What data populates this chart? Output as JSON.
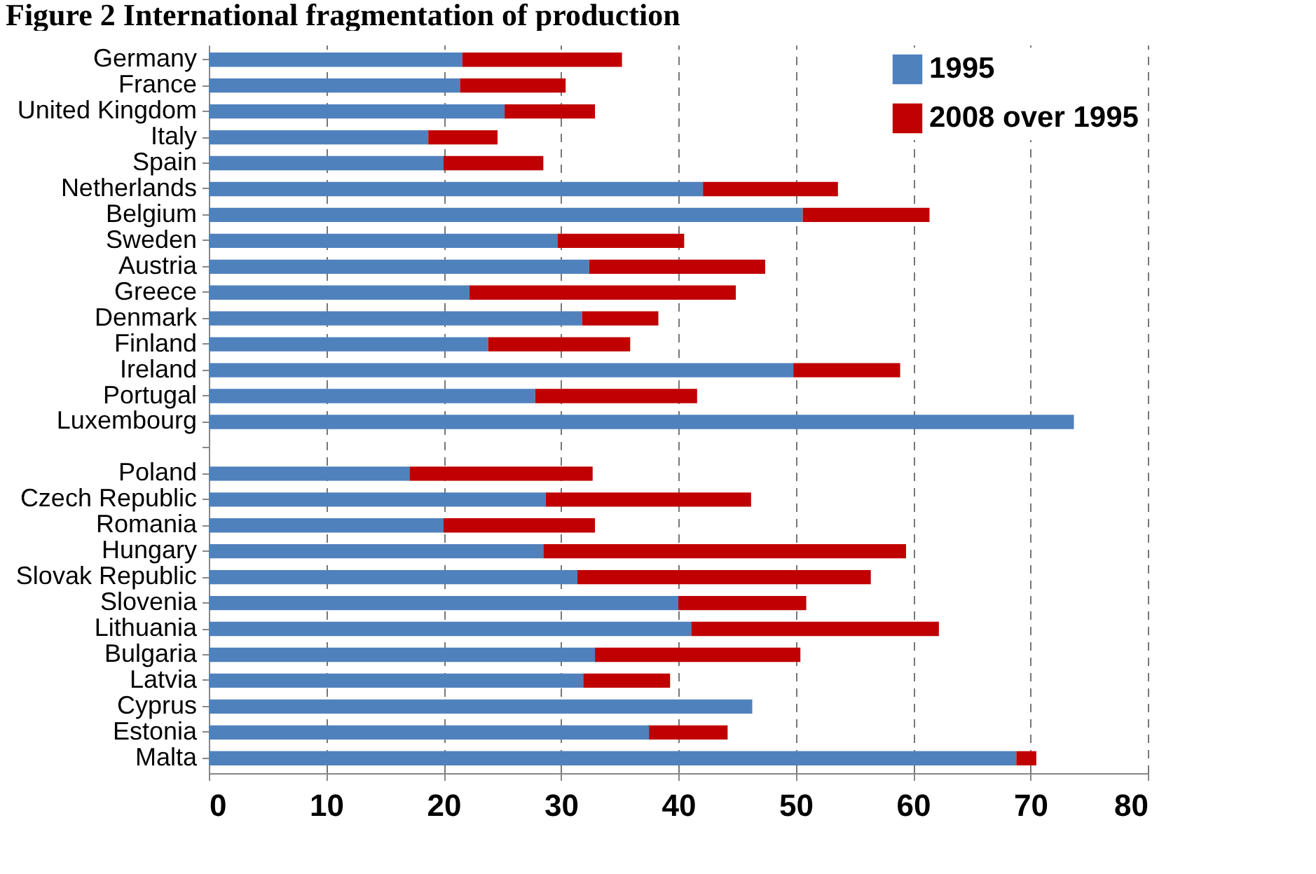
{
  "chart_data": {
    "type": "bar",
    "title": "Figure 2 International fragmentation of production",
    "orientation": "horizontal",
    "stacked": true,
    "categories": [
      "Germany",
      "France",
      "United Kingdom",
      "Italy",
      "Spain",
      "Netherlands",
      "Belgium",
      "Sweden",
      "Austria",
      "Greece",
      "Denmark",
      "Finland",
      "Ireland",
      "Portugal",
      "Luxembourg",
      null,
      "Poland",
      "Czech Republic",
      "Romania",
      "Hungary",
      "Slovak Republic",
      "Slovenia",
      "Lithuania",
      "Bulgaria",
      "Latvia",
      "Cyprus",
      "Estonia",
      "Malta"
    ],
    "series": [
      {
        "name": "1995",
        "color": "#4f81bd",
        "values": [
          21.6,
          21.4,
          25.2,
          18.7,
          20.0,
          42.1,
          50.6,
          29.7,
          32.4,
          22.2,
          31.8,
          23.8,
          49.8,
          27.8,
          73.7,
          null,
          17.1,
          28.7,
          20.0,
          28.5,
          31.4,
          40.0,
          41.1,
          32.9,
          31.9,
          46.3,
          37.5,
          68.8
        ]
      },
      {
        "name": "2008 over 1995",
        "color": "#c00000",
        "values": [
          13.6,
          9.0,
          7.7,
          5.9,
          8.5,
          11.5,
          10.8,
          10.8,
          15.0,
          22.7,
          6.5,
          12.1,
          9.1,
          13.8,
          null,
          null,
          15.6,
          17.5,
          12.9,
          30.9,
          25.0,
          10.9,
          21.1,
          17.5,
          7.4,
          null,
          6.7,
          1.7
        ]
      }
    ],
    "xlim": [
      0,
      80
    ],
    "xticks": [
      0,
      10,
      20,
      30,
      40,
      50,
      60,
      70,
      80
    ],
    "grid": "x",
    "legend": "top right"
  }
}
